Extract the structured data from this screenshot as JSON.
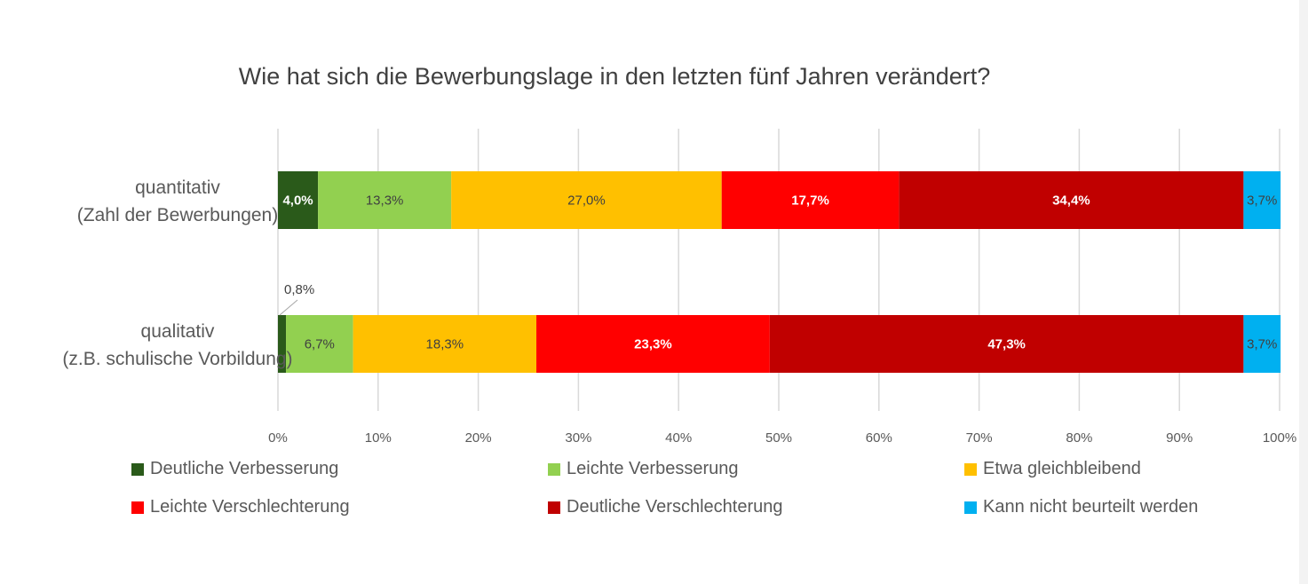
{
  "chart_data": {
    "type": "bar",
    "orientation": "horizontal",
    "stacked": "100%",
    "title": "Wie hat sich die Bewerbungslage in den letzten fünf Jahren verändert?",
    "categories": [
      [
        "quantitativ",
        "(Zahl der Bewerbungen)"
      ],
      [
        "qualitativ",
        "(z.B. schulische Vorbildung)"
      ]
    ],
    "series": [
      {
        "name": "Deutliche Verbesserung",
        "color": "#2a5a1a",
        "label_color": "#ffffff",
        "values": [
          4.0,
          0.8
        ],
        "labels": [
          "4,0%",
          "0,8%"
        ]
      },
      {
        "name": "Leichte Verbesserung",
        "color": "#92d050",
        "label_color": "#404040",
        "values": [
          13.3,
          6.7
        ],
        "labels": [
          "13,3%",
          "6,7%"
        ]
      },
      {
        "name": "Etwa gleichbleibend",
        "color": "#ffc000",
        "label_color": "#404040",
        "values": [
          27.0,
          18.3
        ],
        "labels": [
          "27,0%",
          "18,3%"
        ]
      },
      {
        "name": "Leichte Verschlechterung",
        "color": "#ff0000",
        "label_color": "#ffffff",
        "values": [
          17.7,
          23.3
        ],
        "labels": [
          "17,7%",
          "23,3%"
        ]
      },
      {
        "name": "Deutliche Verschlechterung",
        "color": "#c00000",
        "label_color": "#ffffff",
        "values": [
          34.4,
          47.3
        ],
        "labels": [
          "34,4%",
          "47,3%"
        ]
      },
      {
        "name": "Kann nicht beurteilt werden",
        "color": "#00b0f0",
        "label_color": "#404040",
        "values": [
          3.7,
          3.7
        ],
        "labels": [
          "3,7%",
          "3,7%"
        ]
      }
    ],
    "xlim": [
      0,
      100
    ],
    "xticks": [
      "0%",
      "10%",
      "20%",
      "30%",
      "40%",
      "50%",
      "60%",
      "70%",
      "80%",
      "90%",
      "100%"
    ],
    "grid": true,
    "legend": "bottom"
  }
}
